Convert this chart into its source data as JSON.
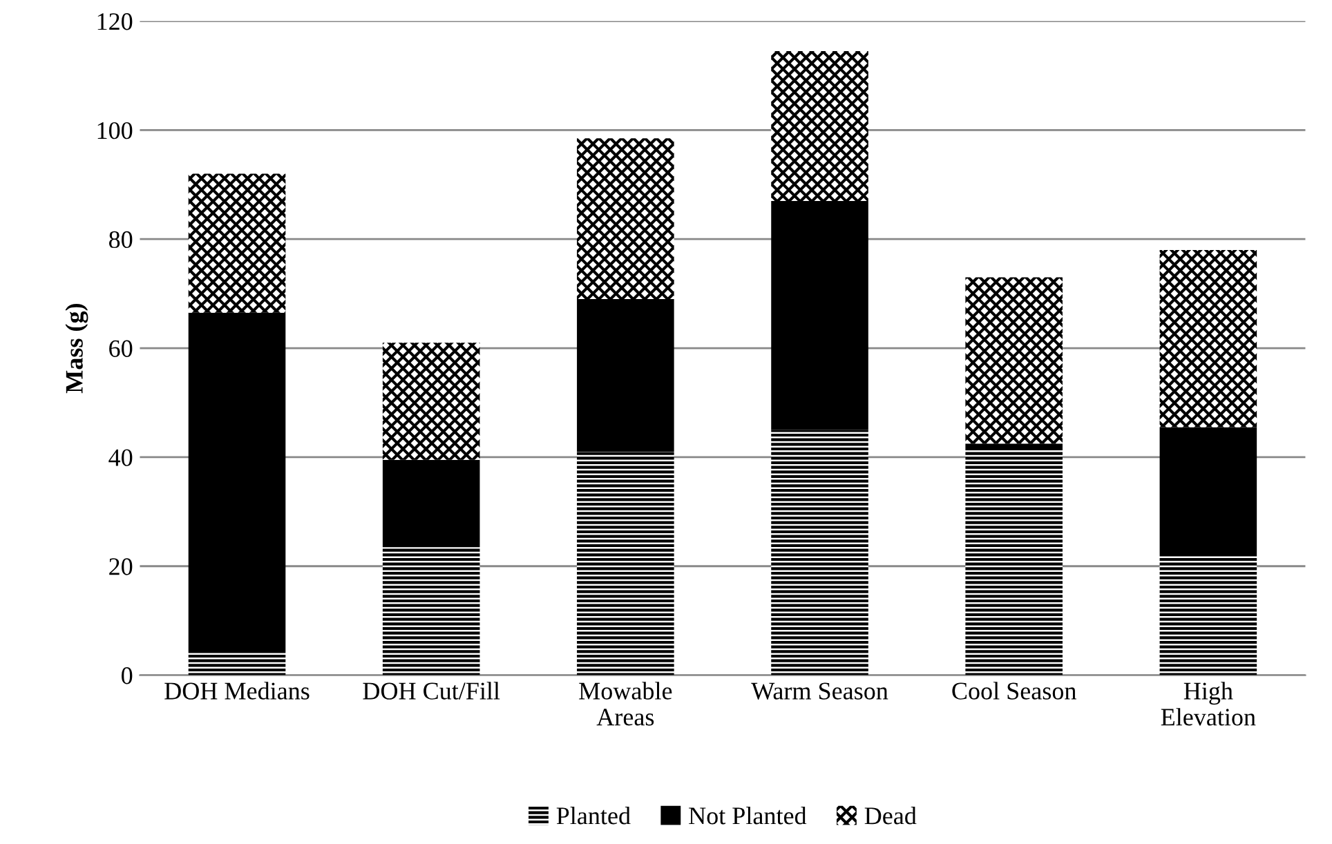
{
  "chart_data": {
    "type": "bar",
    "stacked": true,
    "ylabel": "Mass (g)",
    "categories": [
      "DOH Medians",
      "DOH Cut/Fill",
      "Mowable\nAreas",
      "Warm Season",
      "Cool Season",
      "High\nElevation"
    ],
    "series": [
      {
        "name": "Planted",
        "color": "#000000",
        "values": [
          4.5,
          23.5,
          41,
          45,
          41.5,
          22
        ]
      },
      {
        "name": "Not Planted",
        "color": "#000000",
        "values": [
          62,
          16,
          28,
          42,
          1,
          23.5
        ]
      },
      {
        "name": "Dead",
        "color": "#000000",
        "values": [
          25.5,
          21.5,
          29.5,
          27.5,
          30.5,
          32.5
        ]
      }
    ],
    "ylim": [
      0,
      120
    ],
    "yticks": [
      0,
      20,
      40,
      60,
      80,
      100,
      120
    ],
    "grid": "y",
    "legend": "bottom"
  }
}
